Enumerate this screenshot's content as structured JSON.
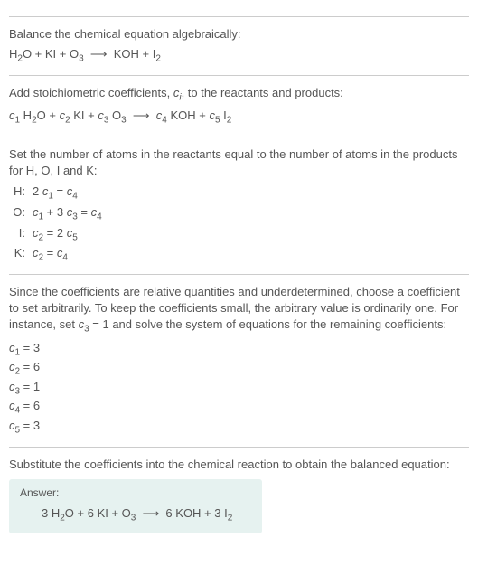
{
  "section1": {
    "text": "Balance the chemical equation algebraically:",
    "formula": "H<sub>2</sub>O + KI + O<sub>3</sub> &nbsp;⟶&nbsp; KOH + I<sub>2</sub>"
  },
  "section2": {
    "text": "Add stoichiometric coefficients, <span class='italic'>c<sub>i</sub></span>, to the reactants and products:",
    "formula": "<span class='italic'>c</span><sub>1</sub> H<sub>2</sub>O + <span class='italic'>c</span><sub>2</sub> KI + <span class='italic'>c</span><sub>3</sub> O<sub>3</sub> &nbsp;⟶&nbsp; <span class='italic'>c</span><sub>4</sub> KOH + <span class='italic'>c</span><sub>5</sub> I<sub>2</sub>"
  },
  "section3": {
    "text": "Set the number of atoms in the reactants equal to the number of atoms in the products for H, O, I and K:",
    "rows": [
      {
        "label": "H:",
        "eq": "2 <span class='italic'>c</span><sub>1</sub> = <span class='italic'>c</span><sub>4</sub>"
      },
      {
        "label": "O:",
        "eq": "<span class='italic'>c</span><sub>1</sub> + 3 <span class='italic'>c</span><sub>3</sub> = <span class='italic'>c</span><sub>4</sub>"
      },
      {
        "label": "I:",
        "eq": "<span class='italic'>c</span><sub>2</sub> = 2 <span class='italic'>c</span><sub>5</sub>"
      },
      {
        "label": "K:",
        "eq": "<span class='italic'>c</span><sub>2</sub> = <span class='italic'>c</span><sub>4</sub>"
      }
    ]
  },
  "section4": {
    "text": "Since the coefficients are relative quantities and underdetermined, choose a coefficient to set arbitrarily. To keep the coefficients small, the arbitrary value is ordinarily one. For instance, set <span class='italic'>c</span><sub>3</sub> = 1 and solve the system of equations for the remaining coefficients:",
    "coefs": [
      "<span class='italic'>c</span><sub>1</sub> = 3",
      "<span class='italic'>c</span><sub>2</sub> = 6",
      "<span class='italic'>c</span><sub>3</sub> = 1",
      "<span class='italic'>c</span><sub>4</sub> = 6",
      "<span class='italic'>c</span><sub>5</sub> = 3"
    ]
  },
  "section5": {
    "text": "Substitute the coefficients into the chemical reaction to obtain the balanced equation:",
    "answer_label": "Answer:",
    "answer_formula": "3 H<sub>2</sub>O + 6 KI + O<sub>3</sub> &nbsp;⟶&nbsp; 6 KOH + 3 I<sub>2</sub>"
  }
}
